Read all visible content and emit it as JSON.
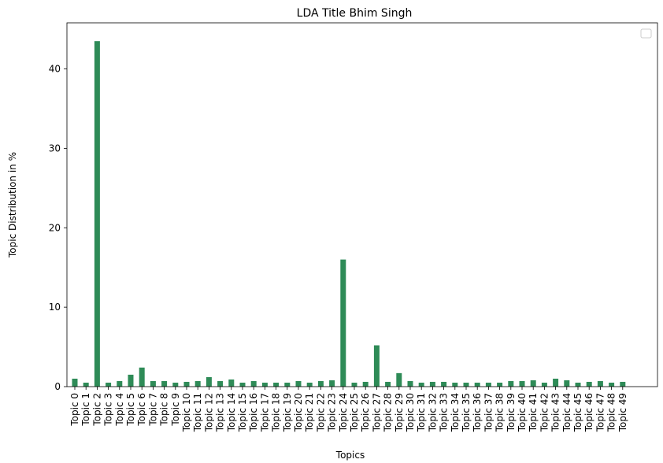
{
  "chart_data": {
    "type": "bar",
    "title": "LDA Title Bhim Singh",
    "xlabel": "Topics",
    "ylabel": "Topic Distribution in %",
    "categories": [
      "Topic 0",
      "Topic 1",
      "Topic 2",
      "Topic 3",
      "Topic 4",
      "Topic 5",
      "Topic 6",
      "Topic 7",
      "Topic 8",
      "Topic 9",
      "Topic 10",
      "Topic 11",
      "Topic 12",
      "Topic 13",
      "Topic 14",
      "Topic 15",
      "Topic 16",
      "Topic 17",
      "Topic 18",
      "Topic 19",
      "Topic 20",
      "Topic 21",
      "Topic 22",
      "Topic 23",
      "Topic 24",
      "Topic 25",
      "Topic 26",
      "Topic 27",
      "Topic 28",
      "Topic 29",
      "Topic 30",
      "Topic 31",
      "Topic 32",
      "Topic 33",
      "Topic 34",
      "Topic 35",
      "Topic 36",
      "Topic 37",
      "Topic 38",
      "Topic 39",
      "Topic 40",
      "Topic 41",
      "Topic 42",
      "Topic 43",
      "Topic 44",
      "Topic 45",
      "Topic 46",
      "Topic 47",
      "Topic 48",
      "Topic 49"
    ],
    "values": [
      1.0,
      0.5,
      43.5,
      0.5,
      0.7,
      1.5,
      2.4,
      0.7,
      0.7,
      0.5,
      0.6,
      0.7,
      1.2,
      0.7,
      0.9,
      0.5,
      0.7,
      0.5,
      0.5,
      0.5,
      0.7,
      0.5,
      0.7,
      0.8,
      16.0,
      0.5,
      0.6,
      5.2,
      0.6,
      1.7,
      0.7,
      0.5,
      0.6,
      0.6,
      0.5,
      0.5,
      0.5,
      0.5,
      0.5,
      0.7,
      0.7,
      0.8,
      0.5,
      1.0,
      0.8,
      0.5,
      0.6,
      0.7,
      0.5,
      0.6
    ],
    "yticks": [
      0,
      10,
      20,
      30,
      40
    ],
    "ylim": [
      0,
      45.8
    ],
    "bar_color": "#2e8b57",
    "grid": false,
    "legend": {
      "placement": "top-right",
      "entries": []
    }
  }
}
